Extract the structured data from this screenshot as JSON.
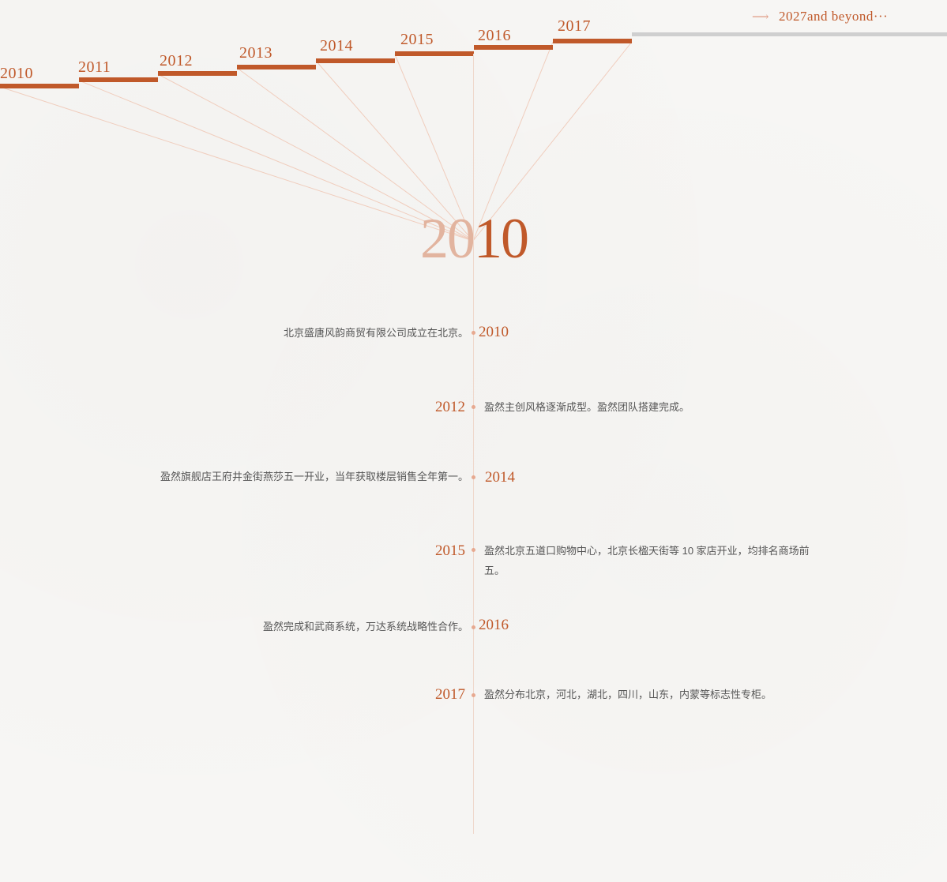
{
  "timeline_nav": {
    "years": [
      "2010",
      "2011",
      "2012",
      "2013",
      "2014",
      "2015",
      "2016",
      "2017"
    ],
    "future_label": "2027and beyond···",
    "future_arrow": "⟶"
  },
  "selected": {
    "year": "2010"
  },
  "events": [
    {
      "year": "2010",
      "text": "北京盛唐风韵商贸有限公司成立在北京。"
    },
    {
      "year": "2012",
      "text": "盈然主创风格逐渐成型。盈然团队搭建完成。"
    },
    {
      "year": "2014",
      "text": "盈然旗舰店王府井金街燕莎五一开业，当年获取楼层销售全年第一。"
    },
    {
      "year": "2015",
      "text": "盈然北京五道口购物中心，北京长楹天街等 10 家店开业，均排名商场前五。"
    },
    {
      "year": "2016",
      "text": "盈然完成和武商系统，万达系统战略性合作。"
    },
    {
      "year": "2017",
      "text": "盈然分布北京，河北，湖北，四川，山东，内蒙等标志性专柜。"
    }
  ],
  "colors": {
    "accent": "#c0592a",
    "accent_light": "#e2b49f",
    "future_bar": "#cfcfcf",
    "axis": "#efd8cc",
    "text": "#555555",
    "background": "#f7f6f4"
  }
}
